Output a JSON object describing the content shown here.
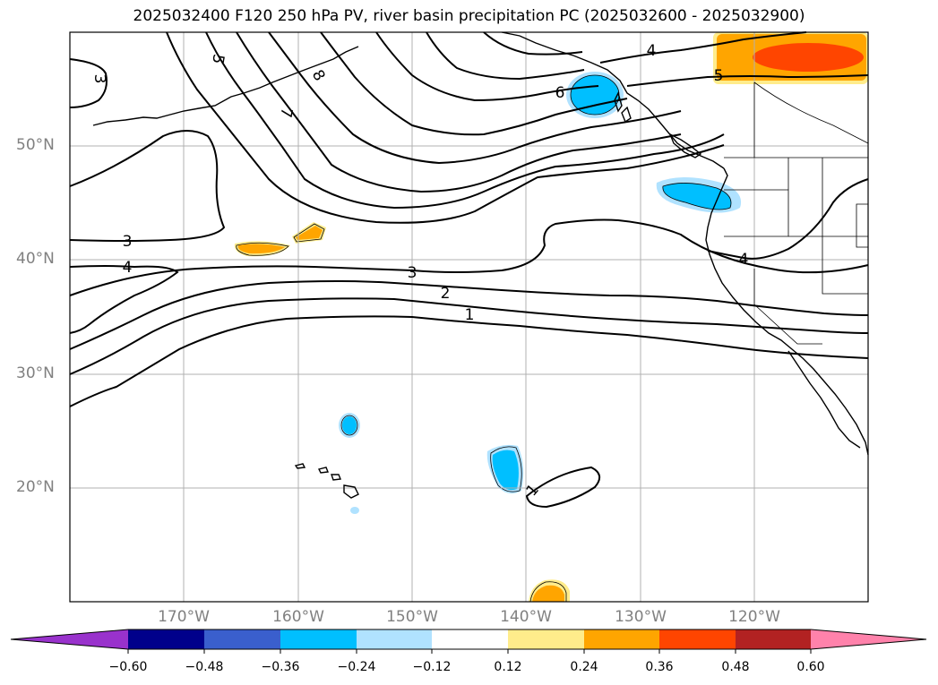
{
  "title": "2025032400 F120 250 hPa PV, river basin precipitation PC (2025032600 - 2025032900)",
  "map": {
    "lon_range": [
      -180,
      -110
    ],
    "lat_range": [
      10,
      60
    ],
    "grid": true,
    "lat_labels": [
      "50°N",
      "40°N",
      "30°N",
      "20°N"
    ],
    "lon_labels": [
      "170°W",
      "160°W",
      "150°W",
      "140°W",
      "130°W",
      "120°W"
    ],
    "contour_color": "#000000",
    "contour_labels": [
      "3",
      "5",
      "8",
      "7",
      "3",
      "4",
      "6",
      "4",
      "5",
      "3",
      "2",
      "1",
      "4",
      "1"
    ]
  },
  "colorbar": {
    "colors": [
      "#9932cc",
      "#00008b",
      "#3a5fcd",
      "#00bfff",
      "#b0e2ff",
      "#ffffff",
      "#ffec8b",
      "#ffa500",
      "#ff4500",
      "#b22222",
      "#ff82ab"
    ],
    "tick_labels": [
      "−0.60",
      "−0.48",
      "−0.36",
      "−0.24",
      "−0.12",
      "0.12",
      "0.24",
      "0.36",
      "0.48",
      "0.60"
    ]
  }
}
